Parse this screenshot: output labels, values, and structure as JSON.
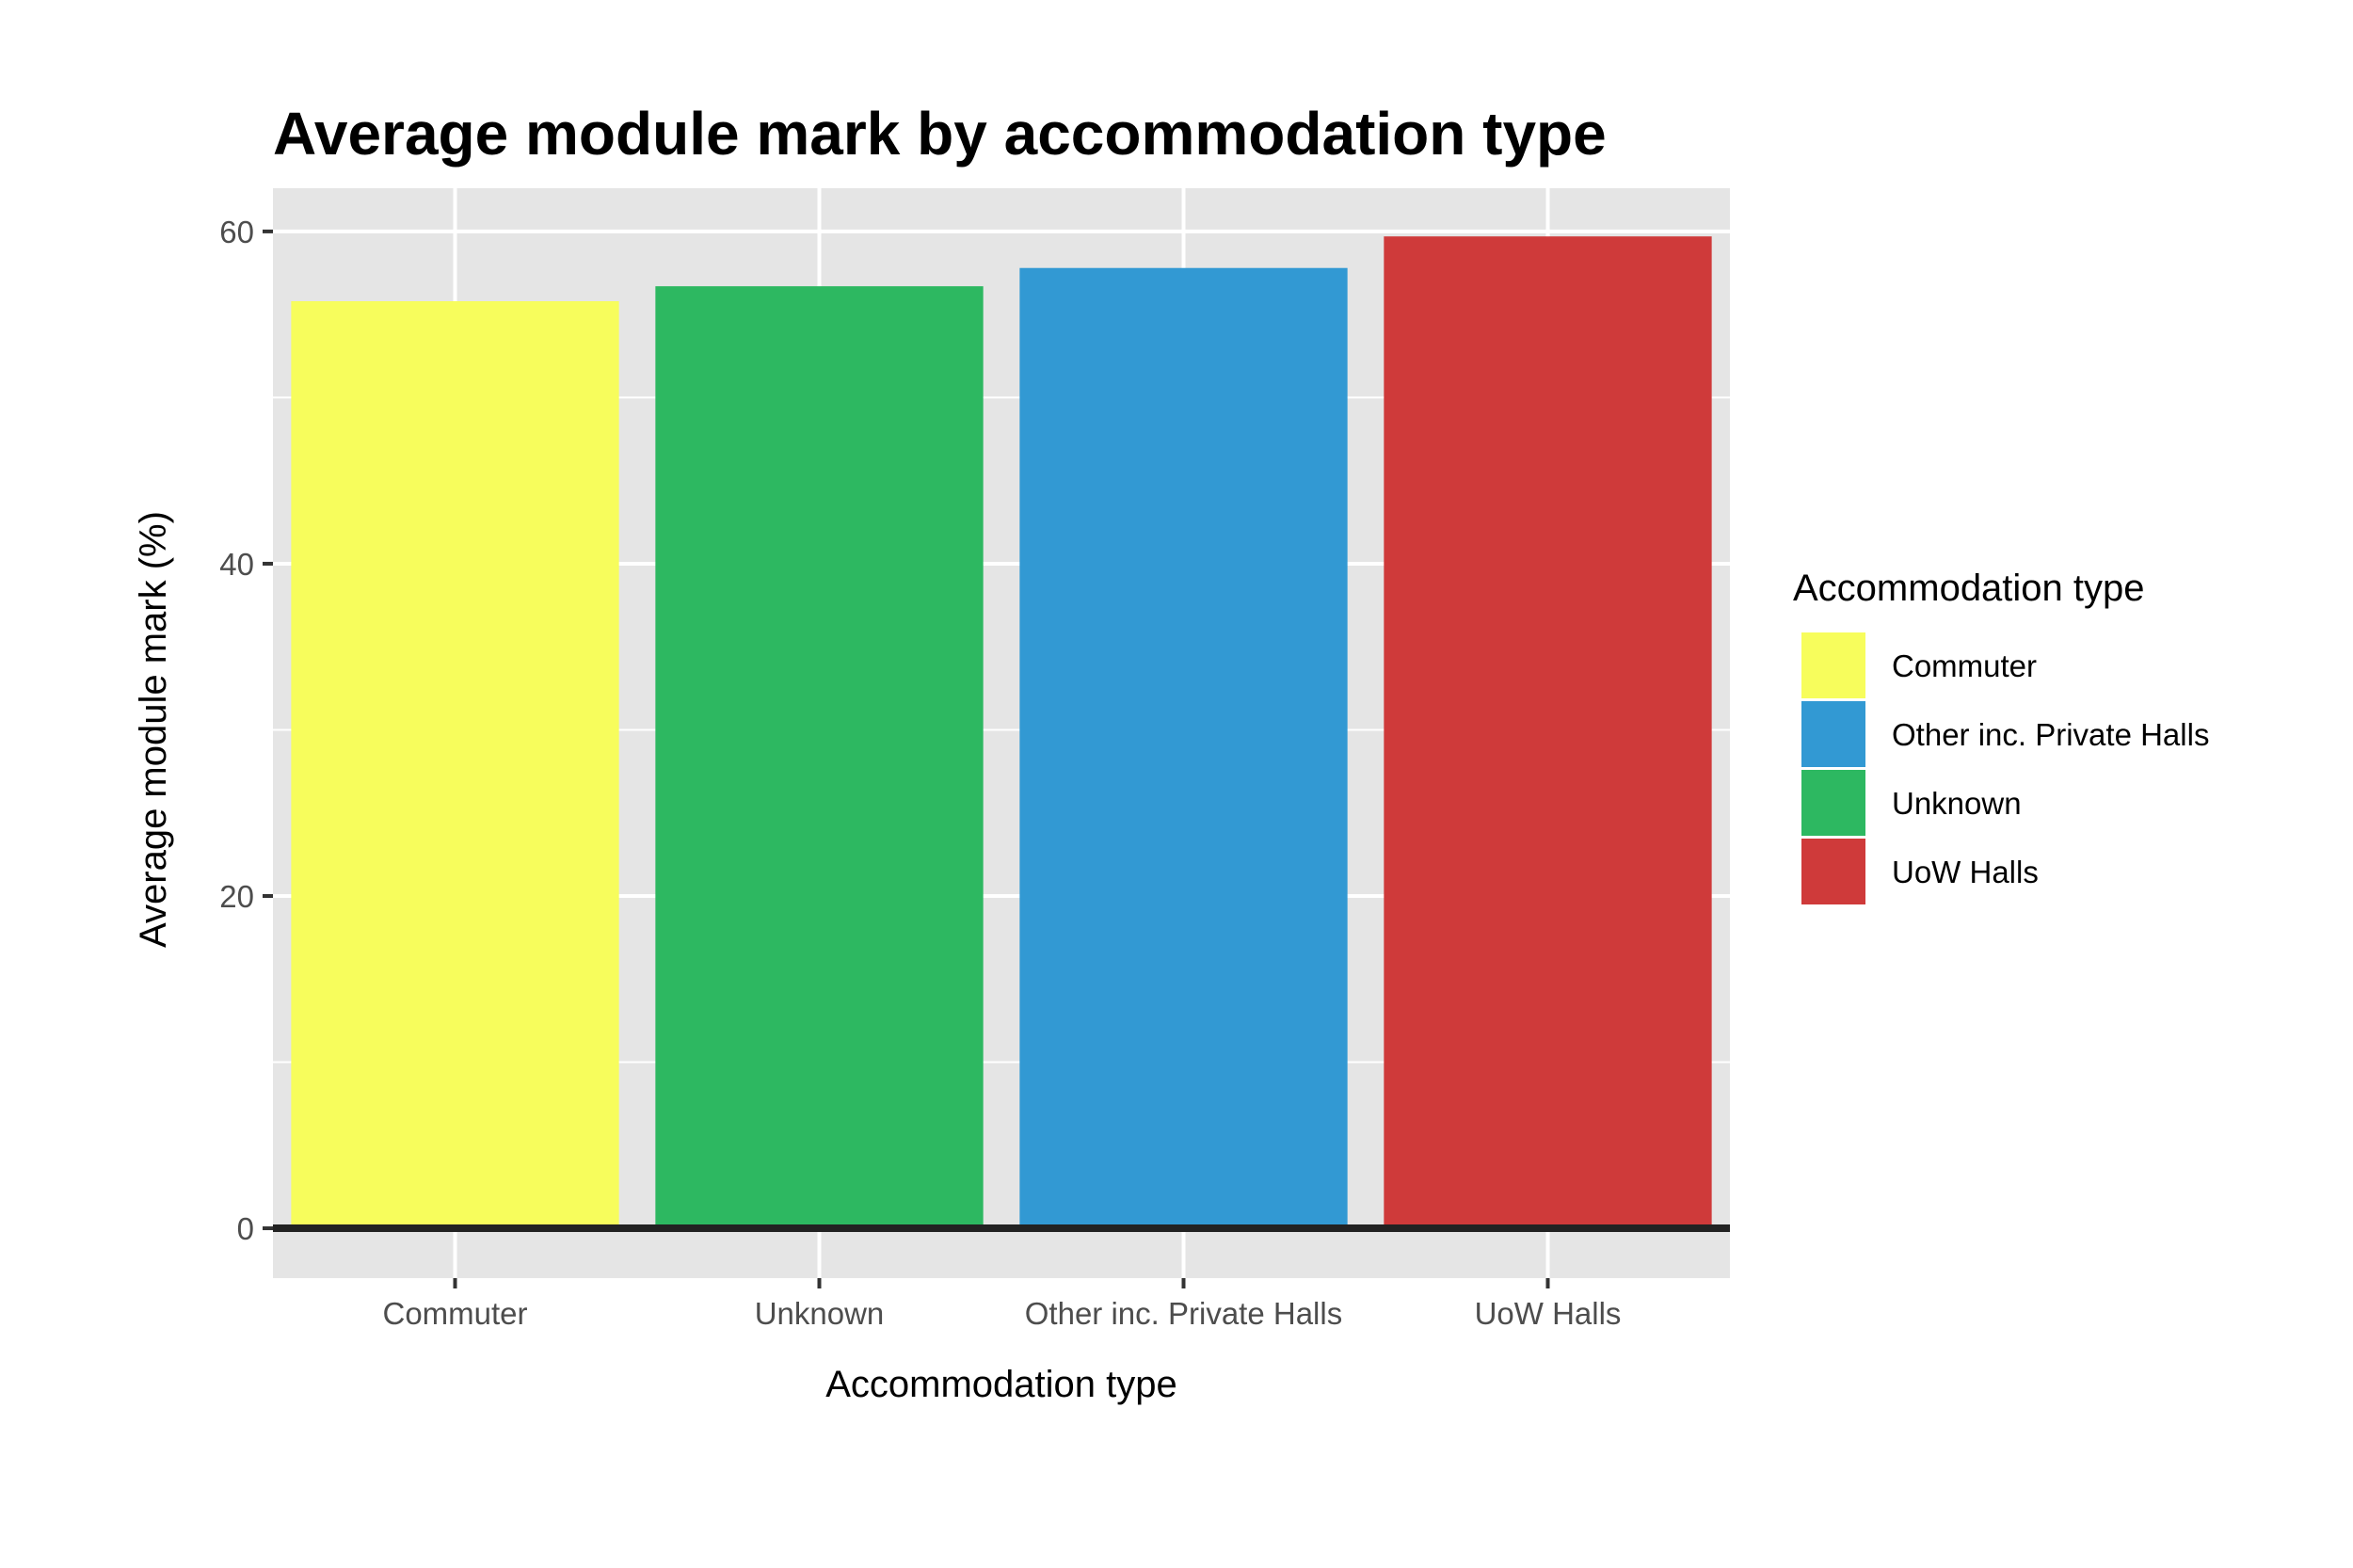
{
  "chart_data": {
    "type": "bar",
    "title": "Average module mark by accommodation type",
    "xlabel": "Accommodation type",
    "ylabel": "Average module mark (%)",
    "categories": [
      "Commuter",
      "Unknown",
      "Other inc. Private Halls",
      "UoW Halls"
    ],
    "values": [
      55.8,
      56.7,
      57.8,
      59.7
    ],
    "colors": [
      "#F7FD5C",
      "#2DB861",
      "#3299D3",
      "#CF3A3A"
    ],
    "ylim": [
      -3,
      62.6
    ],
    "yticks": [
      0,
      20,
      40,
      60
    ],
    "grid": true,
    "baseline": 0,
    "legend": {
      "title": "Accommodation type",
      "placement": "right",
      "entries": [
        {
          "label": "Commuter",
          "color": "#F7FD5C"
        },
        {
          "label": "Other inc. Private Halls",
          "color": "#3299D3"
        },
        {
          "label": "Unknown",
          "color": "#2DB861"
        },
        {
          "label": "UoW Halls",
          "color": "#CF3A3A"
        }
      ]
    }
  }
}
